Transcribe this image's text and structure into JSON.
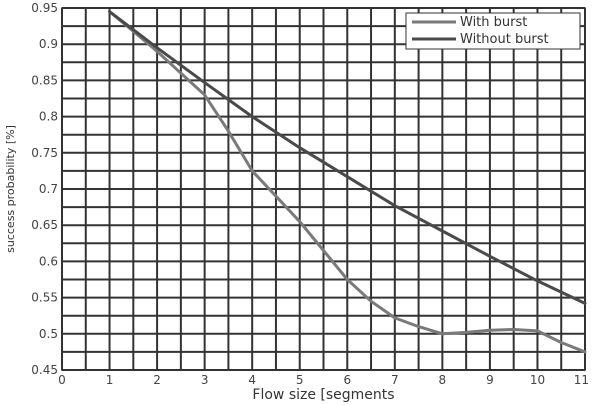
{
  "chart_data": {
    "type": "line",
    "xlabel": "Flow size [segments",
    "ylabel": "success probability [%]",
    "xlim": [
      0,
      11
    ],
    "ylim": [
      0.45,
      0.95
    ],
    "grid": true,
    "legend_position": "top-right",
    "x_ticks": [
      "0",
      "1",
      "2",
      "3",
      "4",
      "5",
      "6",
      "7",
      "8",
      "9",
      "10",
      "11"
    ],
    "y_ticks": [
      "0.45",
      "0.5",
      "0.55",
      "0.6",
      "0.65",
      "0.7",
      "0.75",
      "0.8",
      "0.85",
      "0.9",
      "0.95"
    ],
    "series": [
      {
        "name": "With burst",
        "color": "#7a7a7a",
        "x": [
          1,
          1.5,
          2,
          2.5,
          3,
          3.5,
          4,
          4.5,
          5,
          5.5,
          6,
          6.5,
          7,
          7.5,
          8,
          8.5,
          9,
          9.5,
          10,
          10.5,
          11
        ],
        "y": [
          0.945,
          0.918,
          0.89,
          0.86,
          0.83,
          0.78,
          0.725,
          0.69,
          0.655,
          0.615,
          0.575,
          0.545,
          0.522,
          0.51,
          0.5,
          0.502,
          0.505,
          0.506,
          0.504,
          0.488,
          0.475
        ]
      },
      {
        "name": "Without burst",
        "color": "#4a4a4a",
        "x": [
          1,
          2,
          3,
          4,
          5,
          6,
          7,
          8,
          9,
          10,
          11
        ],
        "y": [
          0.945,
          0.895,
          0.847,
          0.8,
          0.757,
          0.717,
          0.677,
          0.642,
          0.607,
          0.573,
          0.542
        ]
      }
    ]
  }
}
